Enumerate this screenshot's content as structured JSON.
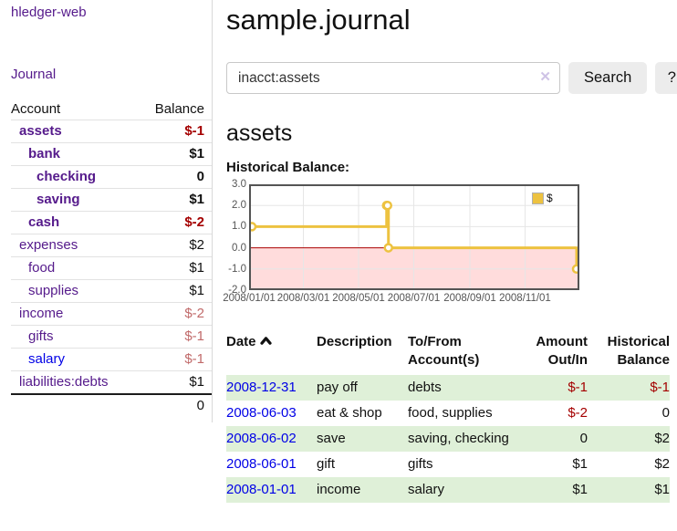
{
  "app": {
    "brand": "hledger-web"
  },
  "sidebar": {
    "journal_link": "Journal",
    "accounts": {
      "headers": {
        "account": "Account",
        "balance": "Balance"
      },
      "rows": [
        {
          "name": "assets",
          "balance": "$-1"
        },
        {
          "name": "bank",
          "balance": "$1"
        },
        {
          "name": "checking",
          "balance": "0"
        },
        {
          "name": "saving",
          "balance": "$1"
        },
        {
          "name": "cash",
          "balance": "$-2"
        },
        {
          "name": "expenses",
          "balance": "$2"
        },
        {
          "name": "food",
          "balance": "$1"
        },
        {
          "name": "supplies",
          "balance": "$1"
        },
        {
          "name": "income",
          "balance": "$-2"
        },
        {
          "name": "gifts",
          "balance": "$-1"
        },
        {
          "name": "salary",
          "balance": "$-1"
        },
        {
          "name": "liabilities:debts",
          "balance": "$1"
        }
      ],
      "total": "0"
    }
  },
  "header": {
    "title": "sample.journal"
  },
  "search": {
    "value": "inacct:assets",
    "clear_icon": "✕",
    "button_label": "Search",
    "help_label": "?"
  },
  "account_page": {
    "heading": "assets",
    "chart_title": "Historical Balance:"
  },
  "chart_data": {
    "type": "line",
    "title": "Historical Balance",
    "step": true,
    "series": [
      {
        "name": "$",
        "color": "#edc240",
        "points": [
          [
            "2008-01-01",
            1
          ],
          [
            "2008-06-01",
            2
          ],
          [
            "2008-06-02",
            2
          ],
          [
            "2008-06-03",
            0
          ],
          [
            "2008-12-31",
            -1
          ]
        ]
      }
    ],
    "ylim": [
      -2,
      3
    ],
    "yticks": [
      3.0,
      2.0,
      1.0,
      0.0,
      -1.0,
      -2.0
    ],
    "xticks": [
      "2008/01/01",
      "2008/03/01",
      "2008/05/01",
      "2008/07/01",
      "2008/09/01",
      "2008/11/01"
    ],
    "grid": true,
    "legend_position": "top-right",
    "negative_region_color": "#ffdcdc",
    "zero_line_color": "#aa0000",
    "border_color": "#545454",
    "grid_color": "#e6e6e6"
  },
  "register": {
    "headers": {
      "date": "Date",
      "description": "Description",
      "accounts": "To/From Account(s)",
      "amount": "Amount Out/In",
      "balance": "Historical Balance"
    },
    "rows": [
      {
        "date": "2008-12-31",
        "description": "pay off",
        "accounts": "debts",
        "amount": "$-1",
        "balance": "$-1"
      },
      {
        "date": "2008-06-03",
        "description": "eat & shop",
        "accounts": "food, supplies",
        "amount": "$-2",
        "balance": "0"
      },
      {
        "date": "2008-06-02",
        "description": "save",
        "accounts": "saving, checking",
        "amount": "0",
        "balance": "$2"
      },
      {
        "date": "2008-06-01",
        "description": "gift",
        "accounts": "gifts",
        "amount": "$1",
        "balance": "$2"
      },
      {
        "date": "2008-01-01",
        "description": "income",
        "accounts": "salary",
        "amount": "$1",
        "balance": "$1"
      }
    ]
  }
}
